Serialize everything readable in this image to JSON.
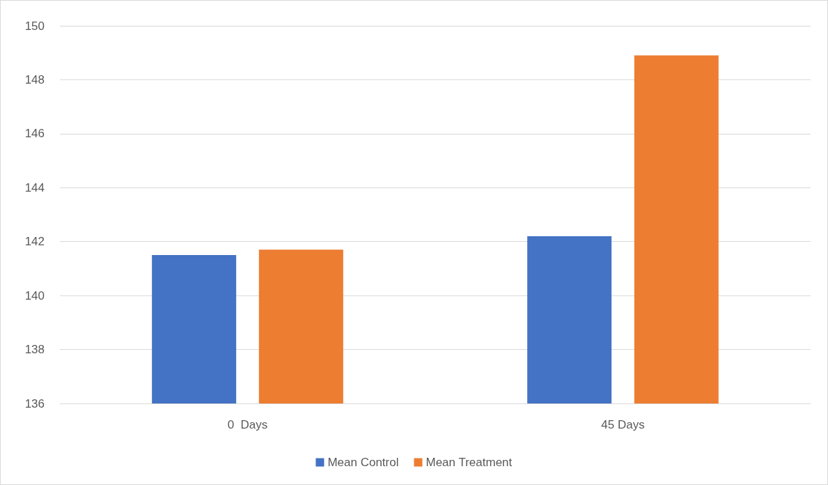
{
  "chart_data": {
    "type": "bar",
    "categories": [
      "0  Days",
      "45 Days"
    ],
    "series": [
      {
        "name": "Mean Control",
        "color": "#4472c4",
        "values": [
          141.5,
          142.2
        ]
      },
      {
        "name": "Mean Treatment",
        "color": "#ed7d31",
        "values": [
          141.7,
          148.9
        ]
      }
    ],
    "ylim": [
      136,
      150
    ],
    "yticks": [
      136,
      138,
      140,
      142,
      144,
      146,
      148,
      150
    ],
    "grid": "y",
    "legend": "bottom"
  }
}
